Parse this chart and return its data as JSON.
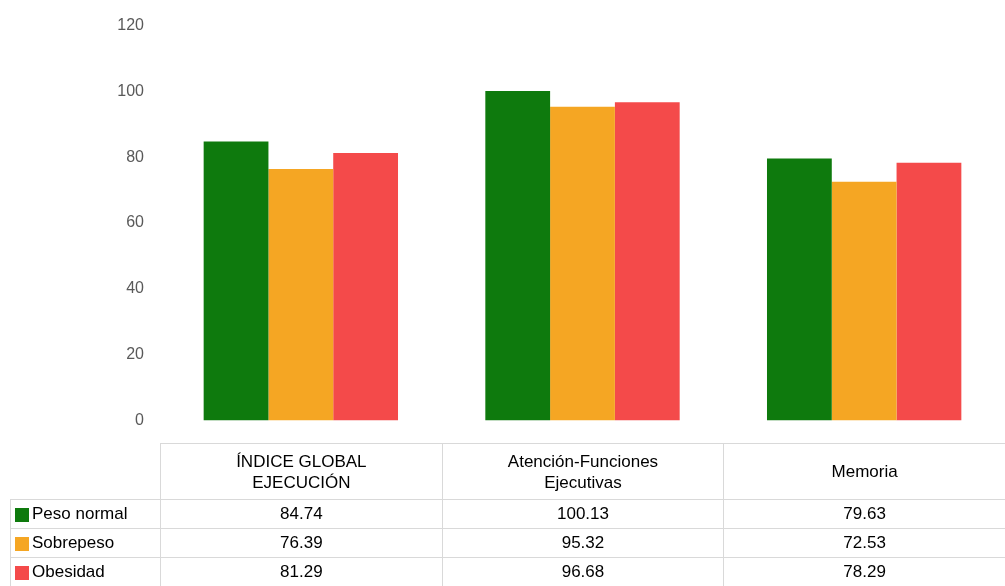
{
  "chart_data": {
    "type": "bar",
    "categories": [
      "ÍNDICE GLOBAL EJECUCIÓN",
      "Atención-Funciones Ejecutivas",
      "Memoria"
    ],
    "series": [
      {
        "name": "Peso normal",
        "color": "#0e7a0d",
        "values": [
          84.74,
          100.13,
          79.63
        ]
      },
      {
        "name": "Sobrepeso",
        "color": "#f5a623",
        "values": [
          76.39,
          95.32,
          72.53
        ]
      },
      {
        "name": "Obesidad",
        "color": "#f44a4a",
        "values": [
          81.29,
          96.68,
          78.29
        ]
      }
    ],
    "ylim": [
      0,
      120
    ],
    "yticks": [
      0,
      20,
      40,
      60,
      80,
      100,
      120
    ],
    "grid": false,
    "legend": "bottom left",
    "data_labels": true
  }
}
